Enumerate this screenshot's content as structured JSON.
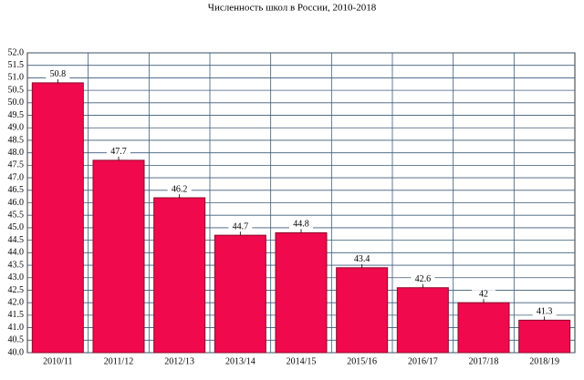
{
  "chart_data": {
    "type": "bar",
    "title": "Численность школ в России, 2010-2018",
    "categories": [
      "2010/11",
      "2011/12",
      "2012/13",
      "2013/14",
      "2014/15",
      "2015/16",
      "2016/17",
      "2017/18",
      "2018/19"
    ],
    "values": [
      50.8,
      47.7,
      46.2,
      44.7,
      44.8,
      43.4,
      42.6,
      42,
      41.3
    ],
    "color": "#f0094c",
    "ylim": [
      40,
      52
    ],
    "yticks": [
      {
        "value": 40,
        "label": "40.0"
      },
      40.5,
      {
        "value": 41,
        "label": "41.0"
      },
      41.5,
      {
        "value": 42,
        "label": "42.0"
      },
      42.5,
      {
        "value": 43,
        "label": "43.0"
      },
      43.5,
      {
        "value": 44,
        "label": "44.0"
      },
      44.5,
      {
        "value": 45,
        "label": "45.0"
      },
      45.5,
      {
        "value": 46,
        "label": "46.0"
      },
      46.5,
      {
        "value": 47,
        "label": "47.0"
      },
      47.5,
      {
        "value": 48,
        "label": "48.0"
      },
      48.5,
      {
        "value": 49,
        "label": "49.0"
      },
      49.5,
      {
        "value": 50,
        "label": "50.0"
      },
      50.5,
      {
        "value": 51,
        "label": "51.0"
      },
      51.5,
      {
        "value": 52,
        "label": "52.0"
      }
    ],
    "grid": true
  }
}
